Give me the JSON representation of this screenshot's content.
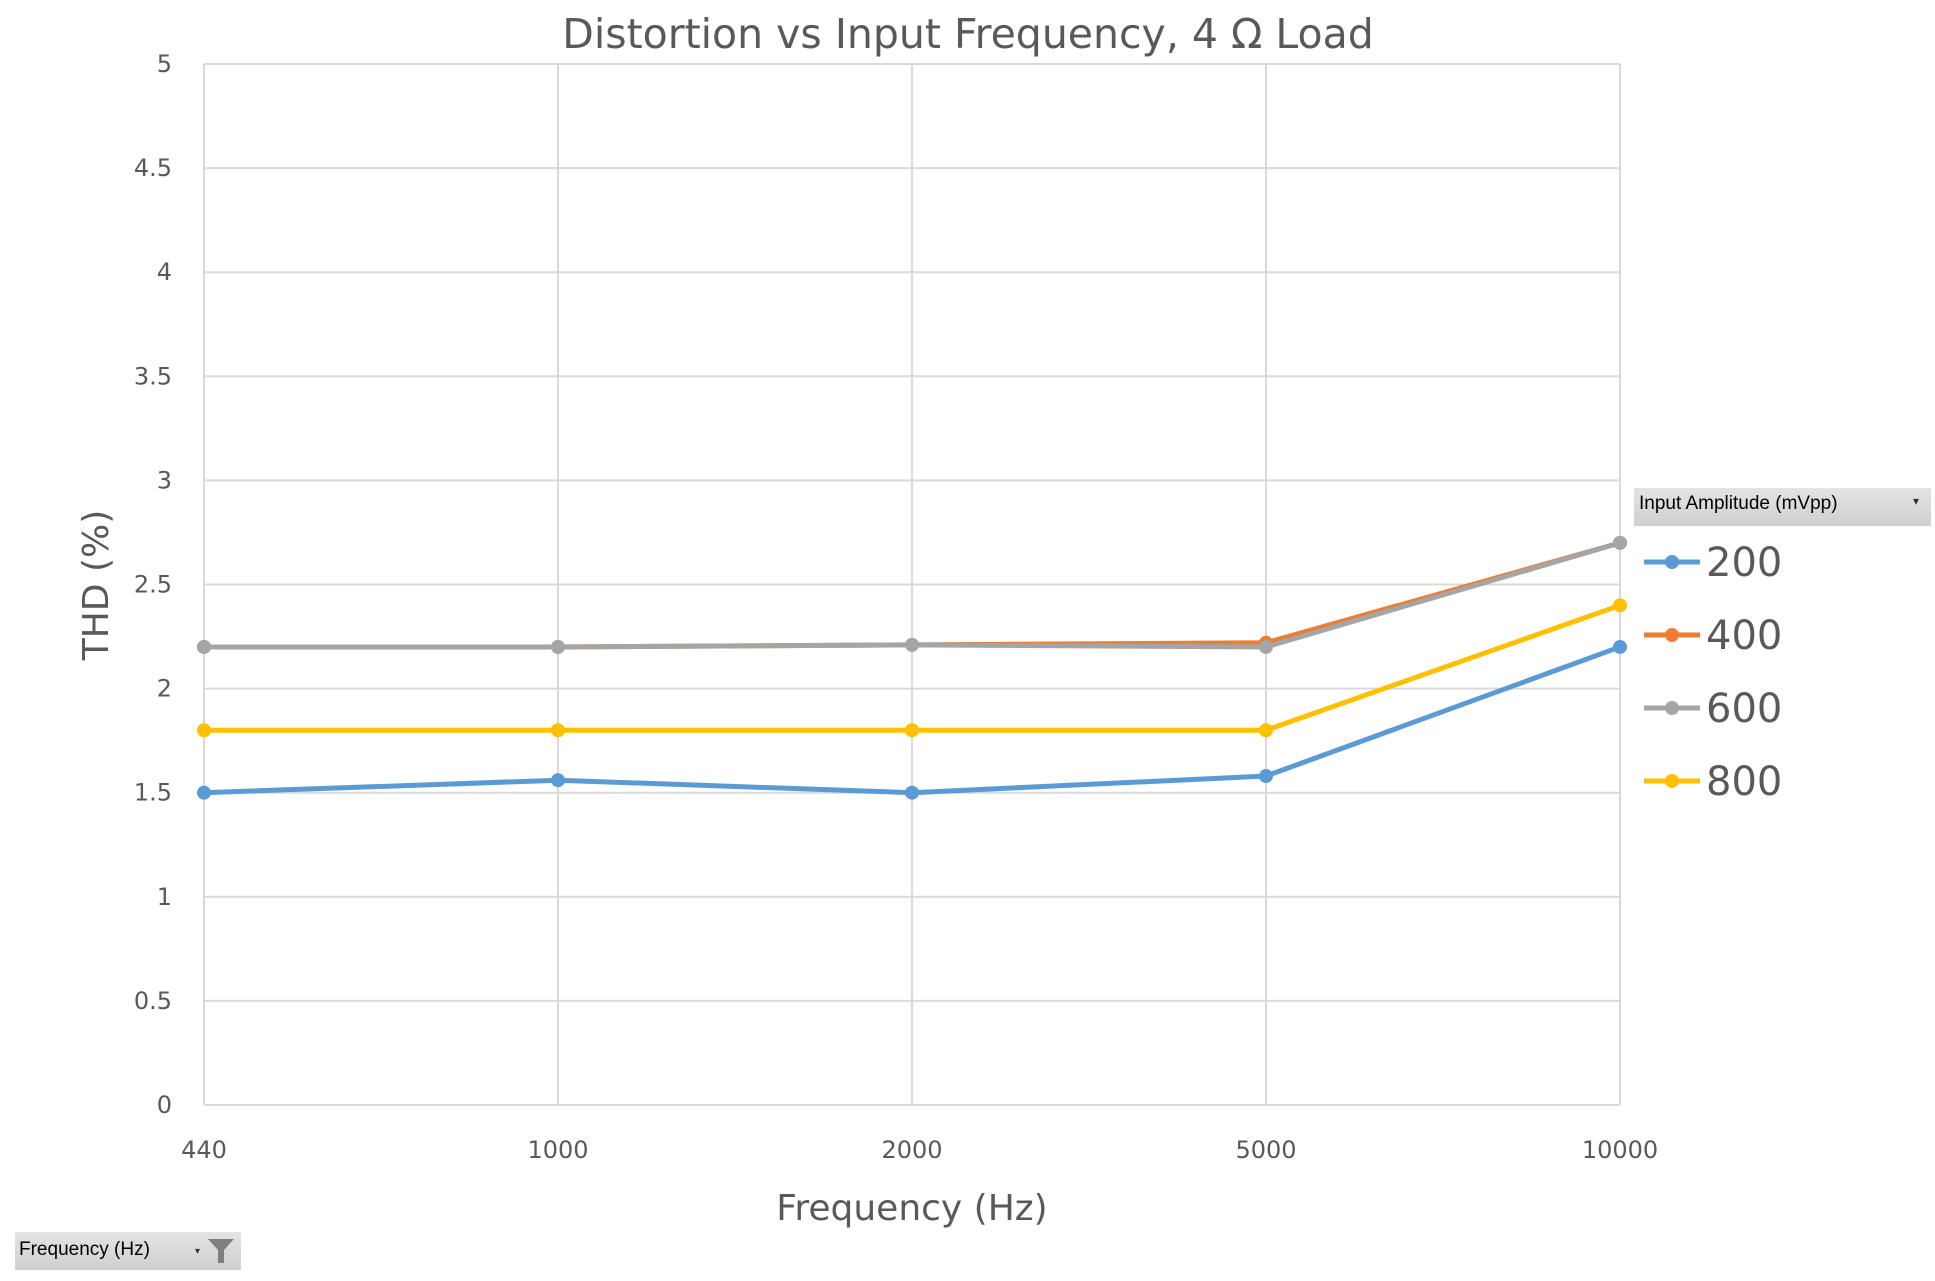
{
  "chart_data": {
    "type": "line",
    "title": "Distortion vs Input Frequency, 4 Ω Load",
    "xlabel": "Frequency (Hz)",
    "ylabel": "THD (%)",
    "categories": [
      "440",
      "1000",
      "2000",
      "5000",
      "10000"
    ],
    "ylim": [
      0,
      5
    ],
    "yticks": [
      "0",
      "0.5",
      "1",
      "1.5",
      "2",
      "2.5",
      "3",
      "3.5",
      "4",
      "4.5",
      "5"
    ],
    "grid": true,
    "legend_title": "Input Amplitude (mVpp)",
    "legend_position": "right",
    "series": [
      {
        "name": "200",
        "color": "#5b9bd5",
        "values": [
          1.5,
          1.56,
          1.5,
          1.58,
          2.2
        ]
      },
      {
        "name": "400",
        "color": "#ed7d31",
        "values": [
          2.2,
          2.2,
          2.21,
          2.22,
          2.7
        ]
      },
      {
        "name": "600",
        "color": "#a5a5a5",
        "values": [
          2.2,
          2.2,
          2.21,
          2.2,
          2.7
        ]
      },
      {
        "name": "800",
        "color": "#ffc000",
        "values": [
          1.8,
          1.8,
          1.8,
          1.8,
          2.4
        ]
      }
    ]
  },
  "filter_button": {
    "label": "Frequency (Hz)"
  }
}
